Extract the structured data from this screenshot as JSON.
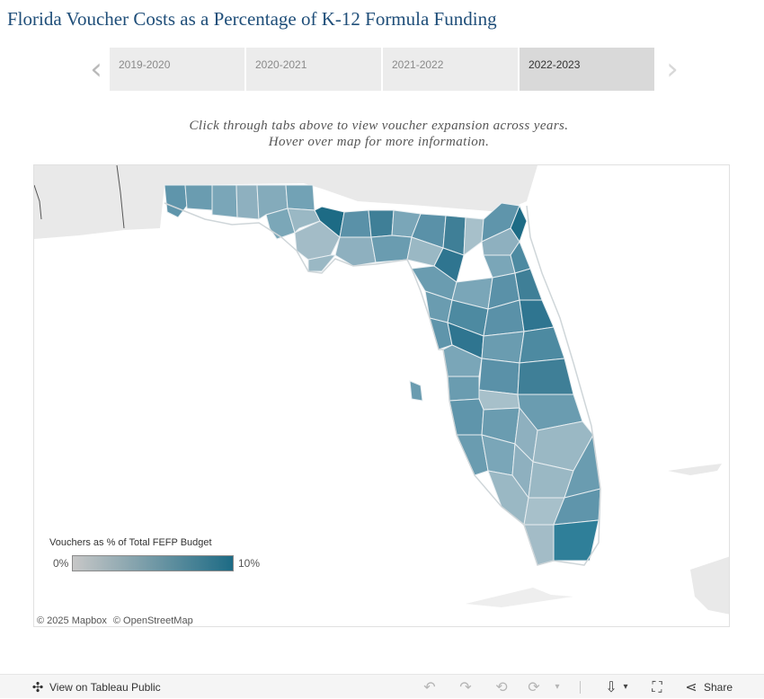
{
  "title": "Florida Voucher Costs as a Percentage of K-12 Formula Funding",
  "tabs": {
    "prev_icon": "chevron-left-icon",
    "next_icon": "chevron-right-icon",
    "items": [
      {
        "label": "2019-2020",
        "active": false
      },
      {
        "label": "2020-2021",
        "active": false
      },
      {
        "label": "2021-2022",
        "active": false
      },
      {
        "label": "2022-2023",
        "active": true
      }
    ]
  },
  "instructions": {
    "line1": "Click through tabs above to view voucher expansion across years.",
    "line2": "Hover over map for more information."
  },
  "legend": {
    "title": "Vouchers as % of Total FEFP Budget",
    "min": "0%",
    "max": "10%",
    "color_low": "#c7c7c7",
    "color_high": "#1d6b85"
  },
  "attribution": {
    "mapbox": "© 2025 Mapbox",
    "osm": "© OpenStreetMap"
  },
  "footer": {
    "view_label": "View on Tableau Public",
    "share_label": "Share",
    "icons": [
      "tableau-public-icon",
      "undo-icon",
      "redo-icon",
      "revert-icon",
      "forward-icon",
      "download-icon",
      "fullscreen-icon",
      "share-icon"
    ]
  },
  "colors": {
    "title": "#1f4e79",
    "tab_bg": "#ececec",
    "tab_active_bg": "#d9d9d9",
    "land": "#e8e8e8",
    "water": "#ffffff",
    "county_mid": "#6a9cb0",
    "county_dark": "#1d6b85"
  }
}
